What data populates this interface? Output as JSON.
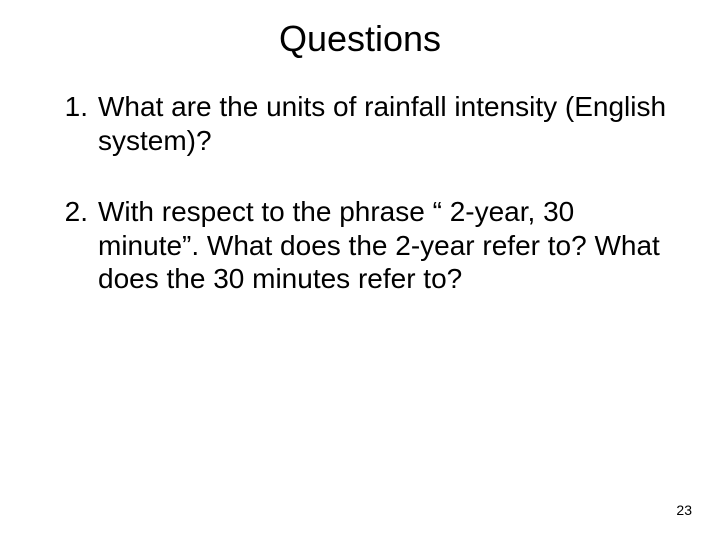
{
  "slide": {
    "title": "Questions",
    "questions": [
      "What are the units of rainfall intensity (English system)?",
      "With respect to the phrase “ 2-year, 30 minute”.  What does the 2-year refer to?  What does the 30 minutes refer to?"
    ],
    "page_number": "23"
  },
  "style": {
    "background_color": "#ffffff",
    "text_color": "#000000",
    "title_fontsize": 36,
    "body_fontsize": 28,
    "pagenum_fontsize": 14,
    "font_family": "Arial"
  }
}
